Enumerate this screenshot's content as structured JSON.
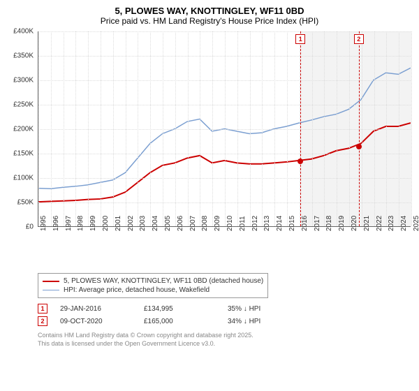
{
  "title": {
    "line1": "5, PLOWES WAY, KNOTTINGLEY, WF11 0BD",
    "line2": "Price paid vs. HM Land Registry's House Price Index (HPI)"
  },
  "chart": {
    "type": "line",
    "background_color": "#ffffff",
    "grid_color": "#dcdcdc",
    "axis_color": "#666666",
    "label_fontsize": 10,
    "ylim": [
      0,
      400000
    ],
    "ytick_step": 50000,
    "yticks": [
      "£0",
      "£50K",
      "£100K",
      "£150K",
      "£200K",
      "£250K",
      "£300K",
      "£350K",
      "£400K"
    ],
    "xlim": [
      1995,
      2025
    ],
    "xticks": [
      1995,
      1996,
      1997,
      1998,
      1999,
      2000,
      2001,
      2002,
      2003,
      2004,
      2005,
      2006,
      2007,
      2008,
      2009,
      2010,
      2011,
      2012,
      2013,
      2014,
      2015,
      2016,
      2017,
      2018,
      2019,
      2020,
      2021,
      2022,
      2023,
      2024,
      2025
    ],
    "shaded_region": {
      "start": 2016.08,
      "end": 2025,
      "color": "#f3f3f3"
    },
    "series": [
      {
        "name": "price_paid",
        "label": "5, PLOWES WAY, KNOTTINGLEY, WF11 0BD (detached house)",
        "color": "#cc0000",
        "line_width": 2,
        "points": [
          [
            1995,
            50000
          ],
          [
            1996,
            51000
          ],
          [
            1997,
            52000
          ],
          [
            1998,
            53000
          ],
          [
            1999,
            55000
          ],
          [
            2000,
            56000
          ],
          [
            2001,
            60000
          ],
          [
            2002,
            70000
          ],
          [
            2003,
            90000
          ],
          [
            2004,
            110000
          ],
          [
            2005,
            125000
          ],
          [
            2006,
            130000
          ],
          [
            2007,
            140000
          ],
          [
            2008,
            145000
          ],
          [
            2009,
            130000
          ],
          [
            2010,
            135000
          ],
          [
            2011,
            130000
          ],
          [
            2012,
            128000
          ],
          [
            2013,
            128000
          ],
          [
            2014,
            130000
          ],
          [
            2015,
            132000
          ],
          [
            2016,
            135000
          ],
          [
            2017,
            138000
          ],
          [
            2018,
            145000
          ],
          [
            2019,
            155000
          ],
          [
            2020,
            160000
          ],
          [
            2021,
            170000
          ],
          [
            2022,
            195000
          ],
          [
            2023,
            205000
          ],
          [
            2024,
            205000
          ],
          [
            2025,
            212000
          ]
        ]
      },
      {
        "name": "hpi",
        "label": "HPI: Average price, detached house, Wakefield",
        "color": "#7b9fd1",
        "line_width": 1.5,
        "points": [
          [
            1995,
            78000
          ],
          [
            1996,
            77000
          ],
          [
            1997,
            80000
          ],
          [
            1998,
            82000
          ],
          [
            1999,
            85000
          ],
          [
            2000,
            90000
          ],
          [
            2001,
            95000
          ],
          [
            2002,
            110000
          ],
          [
            2003,
            140000
          ],
          [
            2004,
            170000
          ],
          [
            2005,
            190000
          ],
          [
            2006,
            200000
          ],
          [
            2007,
            215000
          ],
          [
            2008,
            220000
          ],
          [
            2009,
            195000
          ],
          [
            2010,
            200000
          ],
          [
            2011,
            195000
          ],
          [
            2012,
            190000
          ],
          [
            2013,
            192000
          ],
          [
            2014,
            200000
          ],
          [
            2015,
            205000
          ],
          [
            2016,
            212000
          ],
          [
            2017,
            218000
          ],
          [
            2018,
            225000
          ],
          [
            2019,
            230000
          ],
          [
            2020,
            240000
          ],
          [
            2021,
            260000
          ],
          [
            2022,
            300000
          ],
          [
            2023,
            315000
          ],
          [
            2024,
            312000
          ],
          [
            2025,
            325000
          ]
        ]
      }
    ],
    "markers": [
      {
        "id": "1",
        "x": 2016.08,
        "y": 134995,
        "dot_color": "#cc0000"
      },
      {
        "id": "2",
        "x": 2020.77,
        "y": 165000,
        "dot_color": "#cc0000"
      }
    ]
  },
  "legend": {
    "items": [
      {
        "color": "#cc0000",
        "width": 2,
        "label": "5, PLOWES WAY, KNOTTINGLEY, WF11 0BD (detached house)"
      },
      {
        "color": "#7b9fd1",
        "width": 1.5,
        "label": "HPI: Average price, detached house, Wakefield"
      }
    ]
  },
  "transactions": [
    {
      "id": "1",
      "date": "29-JAN-2016",
      "price": "£134,995",
      "delta": "35% ↓ HPI"
    },
    {
      "id": "2",
      "date": "09-OCT-2020",
      "price": "£165,000",
      "delta": "34% ↓ HPI"
    }
  ],
  "footer": {
    "line1": "Contains HM Land Registry data © Crown copyright and database right 2025.",
    "line2": "This data is licensed under the Open Government Licence v3.0."
  }
}
